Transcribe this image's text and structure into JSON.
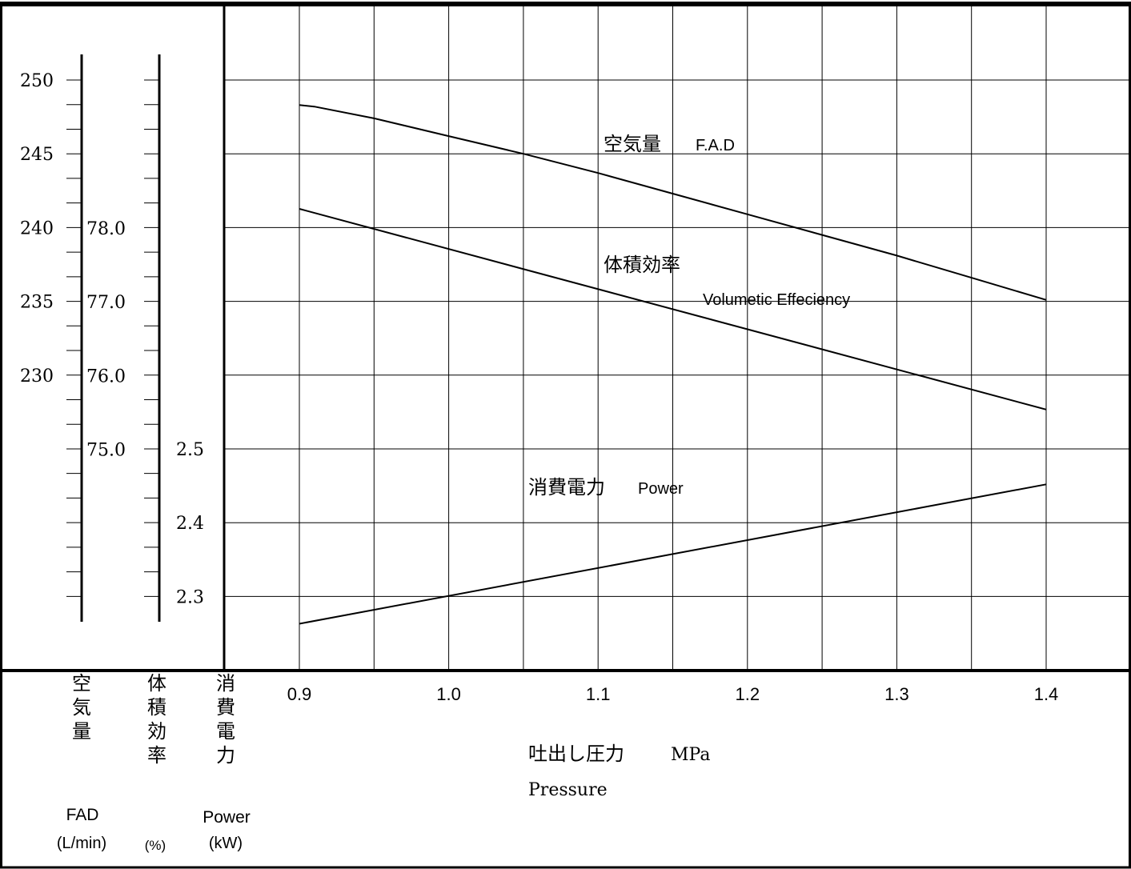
{
  "chart_data": {
    "type": "line",
    "x_ticks": [
      0.9,
      1.0,
      1.1,
      1.2,
      1.3,
      1.4
    ],
    "x_tick_labels": [
      "0.9",
      "1.0",
      "1.1",
      "1.2",
      "1.3",
      "1.4"
    ],
    "xlim": [
      0.9,
      1.4
    ],
    "xlabel_jp": "吐出し圧力",
    "xlabel_unit": "MPa",
    "xlabel_en": "Pressure",
    "grid": true,
    "axes": {
      "fad": {
        "label_jp": [
          "空",
          "気",
          "量"
        ],
        "label_en": "FAD",
        "unit": "(L/min)",
        "tick_labels": [
          "250",
          "245",
          "240",
          "235",
          "230"
        ],
        "ylim": [
          226.5,
          252
        ]
      },
      "vol_eff": {
        "label_jp": [
          "体",
          "積",
          "効",
          "率"
        ],
        "label_en": "",
        "unit": "(%)",
        "tick_labels": [
          "78.0",
          "77.0",
          "76.0",
          "75.0"
        ],
        "ylim": [
          73.5,
          80
        ]
      },
      "power": {
        "label_jp": [
          "消",
          "費",
          "電",
          "力"
        ],
        "label_en": "Power",
        "unit": "(kW)",
        "tick_labels": [
          "2.5",
          "2.4",
          "2.3"
        ],
        "ylim": [
          2.25,
          2.78
        ]
      }
    },
    "series": [
      {
        "axis": "fad",
        "label_jp": "空気量",
        "label_en": "F.A.D",
        "x": [
          0.9,
          0.91,
          0.95,
          1.0,
          1.05,
          1.1,
          1.15,
          1.2,
          1.25,
          1.3,
          1.35,
          1.4
        ],
        "y": [
          248.3,
          248.2,
          247.4,
          246.2,
          245.0,
          243.7,
          242.3,
          240.9,
          239.5,
          238.1,
          236.6,
          235.1
        ]
      },
      {
        "axis": "vol_eff",
        "label_jp": "体積効率",
        "label_en": "Volumetic Effeciency",
        "x": [
          0.9,
          1.4
        ],
        "y": [
          78.26,
          75.54
        ]
      },
      {
        "axis": "power",
        "label_jp": "消費電力",
        "label_en": "Power",
        "x": [
          0.9,
          1.4
        ],
        "y": [
          2.263,
          2.452
        ]
      }
    ]
  }
}
